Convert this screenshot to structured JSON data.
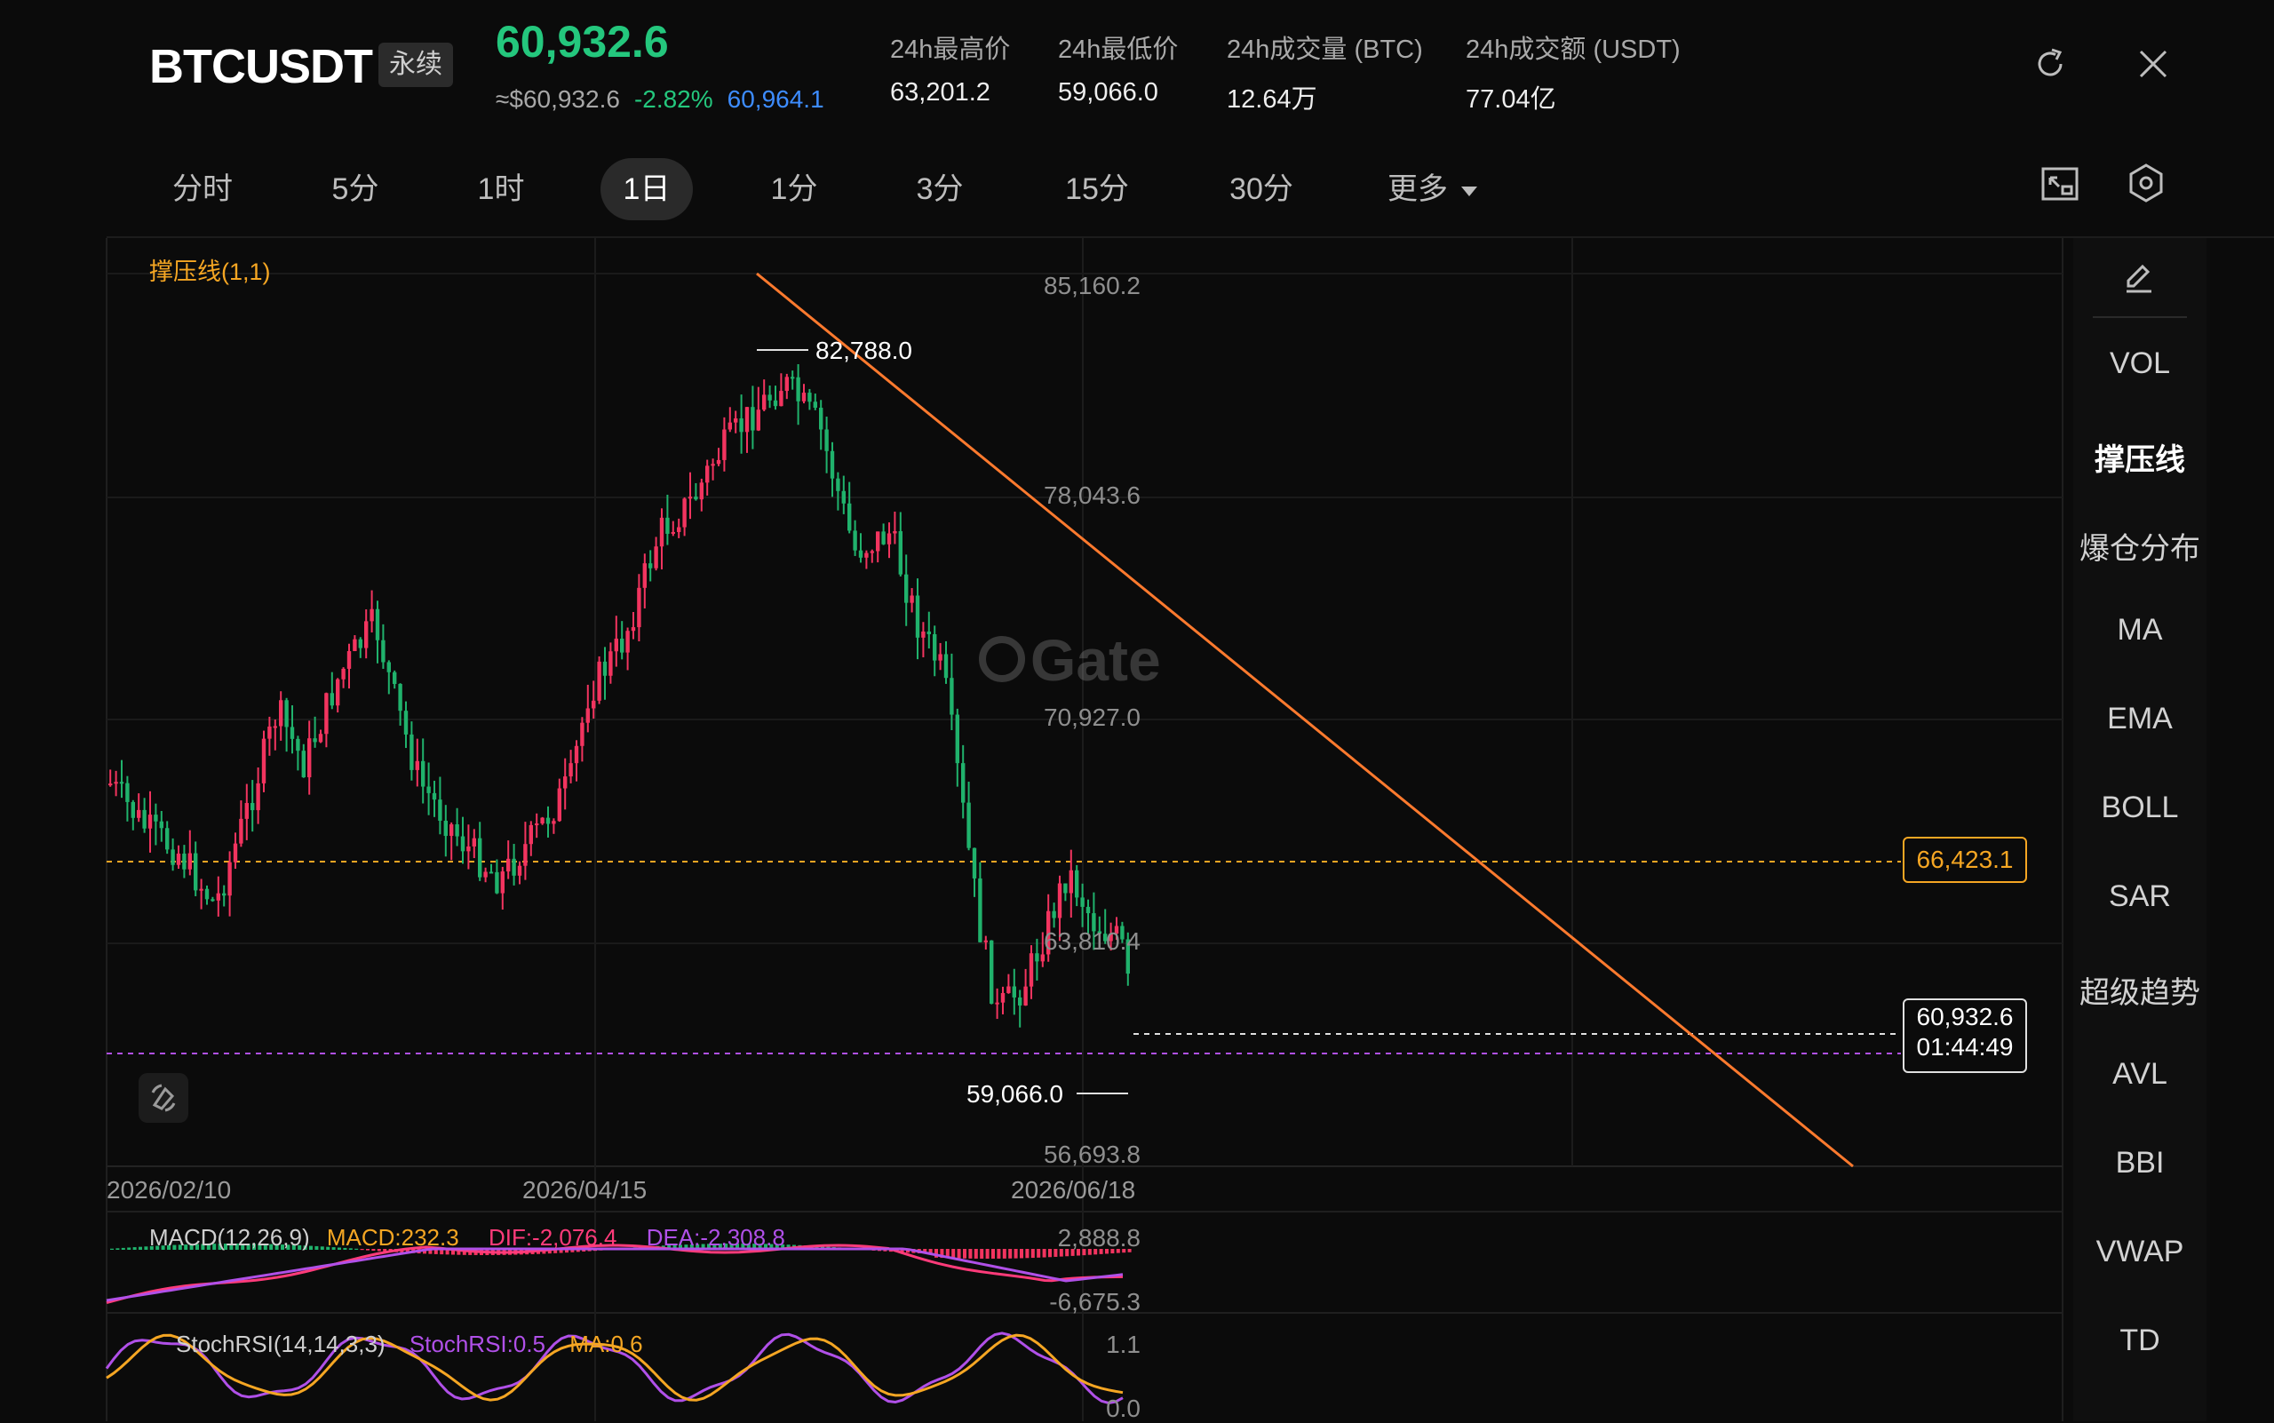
{
  "header": {
    "symbol": "BTCUSDT",
    "contract_tag": "永续",
    "last_price": "60,932.6",
    "approx_usd": "≈$60,932.6",
    "change_pct": "-2.82%",
    "mark_price": "60,964.1",
    "stats": [
      {
        "label": "24h最高价",
        "value": "63,201.2"
      },
      {
        "label": "24h最低价",
        "value": "59,066.0"
      },
      {
        "label": "24h成交量 (BTC)",
        "value": "12.64万"
      },
      {
        "label": "24h成交额 (USDT)",
        "value": "77.04亿"
      }
    ]
  },
  "timeframes": {
    "items": [
      "分时",
      "5分",
      "1时",
      "1日",
      "1分",
      "3分",
      "15分",
      "30分",
      "更多"
    ],
    "active": "1日"
  },
  "indicator_menu": {
    "items": [
      "VOL",
      "撑压线",
      "爆仓分布",
      "MA",
      "EMA",
      "BOLL",
      "SAR",
      "超级趋势",
      "AVL",
      "BBI",
      "VWAP",
      "TD"
    ],
    "active": "撑压线"
  },
  "chart": {
    "indicator_label": "撑压线(1,1)",
    "watermark": "Gate",
    "price_axis": [
      "85,160.2",
      "78,043.6",
      "70,927.0",
      "63,810.4",
      "56,693.8"
    ],
    "support_resistance_tag": "66,423.1",
    "current_price_tag": "60,932.6",
    "countdown": "01:44:49",
    "high_marker": "82,788.0",
    "low_marker": "59,066.0",
    "dates": [
      "2026/02/10",
      "2026/04/15",
      "2026/06/18"
    ]
  },
  "macd": {
    "name": "MACD(12,26,9)",
    "macd": "MACD:232.3",
    "dif": "DIF:-2,076.4",
    "dea": "DEA:-2,308.8",
    "axis_top": "2,888.8",
    "axis_bottom": "-6,675.3"
  },
  "stochrsi": {
    "name": "StochRSI(14,14,3,3)",
    "value": "StochRSI:0.5",
    "ma": "MA:0.6",
    "axis_top": "1.1",
    "axis_bottom": "0.0"
  },
  "colors": {
    "up": "#f2345f",
    "down": "#20b26c",
    "accent_green": "#24c77d",
    "accent_blue": "#3d8cff",
    "trendline": "#ff7a2e",
    "support_line": "#f5a623",
    "purple_line": "#b050e8"
  },
  "chart_data": {
    "type": "candlestick",
    "price_range": [
      56693.8,
      85160.2
    ],
    "high": 82788.0,
    "low": 59066.0,
    "last": 60932.6,
    "support_resistance": 66423.1,
    "x_labels": [
      "2026/02/10",
      "2026/04/15",
      "2026/06/18"
    ]
  }
}
